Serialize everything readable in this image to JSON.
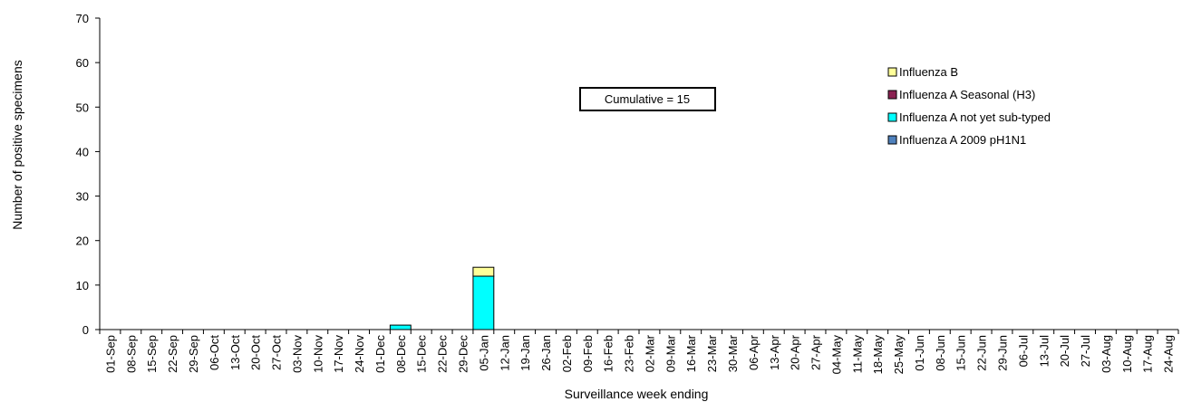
{
  "chart_data": {
    "type": "bar",
    "stacked": true,
    "title": "",
    "xlabel": "Surveillance week ending",
    "ylabel": "Number of positive specimens",
    "ylim": [
      0,
      70
    ],
    "yticks": [
      0,
      10,
      20,
      30,
      40,
      50,
      60,
      70
    ],
    "grid": false,
    "legend_position": "right",
    "categories": [
      "01-Sep",
      "08-Sep",
      "15-Sep",
      "22-Sep",
      "29-Sep",
      "06-Oct",
      "13-Oct",
      "20-Oct",
      "27-Oct",
      "03-Nov",
      "10-Nov",
      "17-Nov",
      "24-Nov",
      "01-Dec",
      "08-Dec",
      "15-Dec",
      "22-Dec",
      "29-Dec",
      "05-Jan",
      "12-Jan",
      "19-Jan",
      "26-Jan",
      "02-Feb",
      "09-Feb",
      "16-Feb",
      "23-Feb",
      "02-Mar",
      "09-Mar",
      "16-Mar",
      "23-Mar",
      "30-Mar",
      "06-Apr",
      "13-Apr",
      "20-Apr",
      "27-Apr",
      "04-May",
      "11-May",
      "18-May",
      "25-May",
      "01-Jun",
      "08-Jun",
      "15-Jun",
      "22-Jun",
      "29-Jun",
      "06-Jul",
      "13-Jul",
      "20-Jul",
      "27-Jul",
      "03-Aug",
      "10-Aug",
      "17-Aug",
      "24-Aug"
    ],
    "series": [
      {
        "name": "Influenza A 2009 pH1N1",
        "color": "#4f81bd",
        "values": [
          0,
          0,
          0,
          0,
          0,
          0,
          0,
          0,
          0,
          0,
          0,
          0,
          0,
          0,
          0,
          0,
          0,
          0,
          0,
          0,
          0,
          0,
          0,
          0,
          0,
          0,
          0,
          0,
          0,
          0,
          0,
          0,
          0,
          0,
          0,
          0,
          0,
          0,
          0,
          0,
          0,
          0,
          0,
          0,
          0,
          0,
          0,
          0,
          0,
          0,
          0,
          0
        ]
      },
      {
        "name": "Influenza A not yet sub-typed",
        "color": "#00ffff",
        "values": [
          0,
          0,
          0,
          0,
          0,
          0,
          0,
          0,
          0,
          0,
          0,
          0,
          0,
          0,
          1,
          0,
          0,
          0,
          12,
          0,
          0,
          0,
          0,
          0,
          0,
          0,
          0,
          0,
          0,
          0,
          0,
          0,
          0,
          0,
          0,
          0,
          0,
          0,
          0,
          0,
          0,
          0,
          0,
          0,
          0,
          0,
          0,
          0,
          0,
          0,
          0,
          0
        ]
      },
      {
        "name": "Influenza A Seasonal (H3)",
        "color": "#8b2252",
        "values": [
          0,
          0,
          0,
          0,
          0,
          0,
          0,
          0,
          0,
          0,
          0,
          0,
          0,
          0,
          0,
          0,
          0,
          0,
          0,
          0,
          0,
          0,
          0,
          0,
          0,
          0,
          0,
          0,
          0,
          0,
          0,
          0,
          0,
          0,
          0,
          0,
          0,
          0,
          0,
          0,
          0,
          0,
          0,
          0,
          0,
          0,
          0,
          0,
          0,
          0,
          0,
          0
        ]
      },
      {
        "name": "Influenza B",
        "color": "#ffff99",
        "values": [
          0,
          0,
          0,
          0,
          0,
          0,
          0,
          0,
          0,
          0,
          0,
          0,
          0,
          0,
          0,
          0,
          0,
          0,
          2,
          0,
          0,
          0,
          0,
          0,
          0,
          0,
          0,
          0,
          0,
          0,
          0,
          0,
          0,
          0,
          0,
          0,
          0,
          0,
          0,
          0,
          0,
          0,
          0,
          0,
          0,
          0,
          0,
          0,
          0,
          0,
          0,
          0
        ]
      }
    ],
    "legend_order": [
      "Influenza B",
      "Influenza A Seasonal (H3)",
      "Influenza A not yet sub-typed",
      "Influenza A 2009 pH1N1"
    ],
    "annotation": "Cumulative = 15"
  }
}
